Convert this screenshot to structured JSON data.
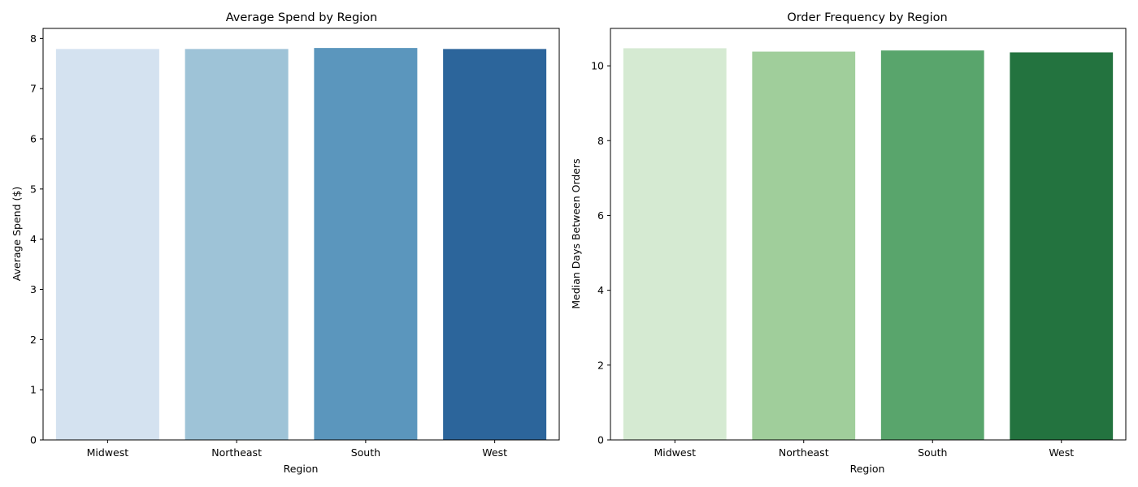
{
  "chart_data": [
    {
      "type": "bar",
      "title": "Average Spend by Region",
      "xlabel": "Region",
      "ylabel": "Average Spend ($)",
      "categories": [
        "Midwest",
        "Northeast",
        "South",
        "West"
      ],
      "values": [
        7.79,
        7.79,
        7.81,
        7.79
      ],
      "colors": [
        "#d4e2f0",
        "#9ec3d7",
        "#5b96bd",
        "#2c659b"
      ],
      "ylim": [
        0,
        8.2
      ],
      "yticks": [
        0,
        1,
        2,
        3,
        4,
        5,
        6,
        7,
        8
      ],
      "grid": false,
      "legend": "none"
    },
    {
      "type": "bar",
      "title": "Order Frequency by Region",
      "xlabel": "Region",
      "ylabel": "Median Days Between Orders",
      "categories": [
        "Midwest",
        "Northeast",
        "South",
        "West"
      ],
      "values": [
        10.47,
        10.38,
        10.41,
        10.36
      ],
      "colors": [
        "#d5ead2",
        "#a0ce9b",
        "#59a56c",
        "#23733f"
      ],
      "ylim": [
        0,
        11
      ],
      "yticks": [
        0,
        2,
        4,
        6,
        8,
        10
      ],
      "grid": false,
      "legend": "none"
    }
  ]
}
